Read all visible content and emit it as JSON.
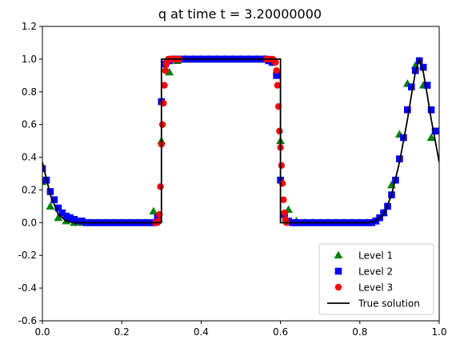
{
  "chart_data": {
    "type": "scatter",
    "title": "q at time t =     3.20000000",
    "xlabel": "",
    "ylabel": "",
    "xlim": [
      0.0,
      1.0
    ],
    "ylim": [
      -0.6,
      1.2
    ],
    "xticks": [
      "0.0",
      "0.2",
      "0.4",
      "0.6",
      "0.8",
      "1.0"
    ],
    "yticks": [
      "-0.6",
      "-0.4",
      "-0.2",
      "0.0",
      "0.2",
      "0.4",
      "0.6",
      "0.8",
      "1.0",
      "1.2"
    ],
    "grid": false,
    "legend_position": "lower-right",
    "series": [
      {
        "name": "Level 1",
        "marker": "triangle",
        "color": "#008000",
        "x": [
          0.0,
          0.02,
          0.04,
          0.06,
          0.08,
          0.1,
          0.12,
          0.14,
          0.16,
          0.18,
          0.2,
          0.22,
          0.24,
          0.26,
          0.28,
          0.3,
          0.32,
          0.34,
          0.36,
          0.38,
          0.4,
          0.42,
          0.44,
          0.46,
          0.48,
          0.5,
          0.52,
          0.54,
          0.56,
          0.58,
          0.6,
          0.62,
          0.64,
          0.66,
          0.68,
          0.7,
          0.72,
          0.74,
          0.76,
          0.78,
          0.8,
          0.82,
          0.84,
          0.86,
          0.88,
          0.9,
          0.92,
          0.94,
          0.96,
          0.98
        ],
        "y": [
          0.25,
          0.1,
          0.03,
          0.01,
          0.0,
          0.0,
          0.0,
          0.0,
          0.0,
          0.0,
          0.0,
          0.0,
          0.0,
          0.0,
          0.07,
          0.5,
          0.92,
          0.99,
          1.0,
          1.0,
          1.0,
          1.0,
          1.0,
          1.0,
          1.0,
          1.0,
          1.0,
          1.0,
          1.0,
          0.98,
          0.5,
          0.08,
          0.01,
          0.0,
          0.0,
          0.0,
          0.0,
          0.0,
          0.0,
          0.0,
          0.0,
          0.0,
          0.01,
          0.06,
          0.23,
          0.54,
          0.85,
          0.96,
          0.84,
          0.52
        ]
      },
      {
        "name": "Level 2",
        "marker": "square",
        "color": "#0000ff",
        "x": [
          0.0,
          0.01,
          0.02,
          0.03,
          0.04,
          0.05,
          0.06,
          0.07,
          0.08,
          0.09,
          0.1,
          0.11,
          0.12,
          0.13,
          0.14,
          0.15,
          0.16,
          0.17,
          0.18,
          0.19,
          0.2,
          0.21,
          0.22,
          0.23,
          0.24,
          0.25,
          0.26,
          0.27,
          0.28,
          0.29,
          0.3,
          0.31,
          0.32,
          0.33,
          0.34,
          0.35,
          0.36,
          0.37,
          0.38,
          0.39,
          0.4,
          0.41,
          0.42,
          0.43,
          0.44,
          0.45,
          0.46,
          0.47,
          0.48,
          0.49,
          0.5,
          0.51,
          0.52,
          0.53,
          0.54,
          0.55,
          0.56,
          0.57,
          0.58,
          0.59,
          0.6,
          0.61,
          0.62,
          0.63,
          0.64,
          0.65,
          0.66,
          0.67,
          0.68,
          0.69,
          0.7,
          0.71,
          0.72,
          0.73,
          0.74,
          0.75,
          0.76,
          0.77,
          0.78,
          0.79,
          0.8,
          0.81,
          0.82,
          0.83,
          0.84,
          0.85,
          0.86,
          0.87,
          0.88,
          0.89,
          0.9,
          0.91,
          0.92,
          0.93,
          0.94,
          0.95,
          0.96,
          0.97,
          0.98,
          0.99
        ],
        "y": [
          0.33,
          0.26,
          0.19,
          0.14,
          0.09,
          0.06,
          0.04,
          0.03,
          0.02,
          0.01,
          0.01,
          0.0,
          0.0,
          0.0,
          0.0,
          0.0,
          0.0,
          0.0,
          0.0,
          0.0,
          0.0,
          0.0,
          0.0,
          0.0,
          0.0,
          0.0,
          0.0,
          0.0,
          0.0,
          0.03,
          0.74,
          0.97,
          0.99,
          1.0,
          1.0,
          1.0,
          1.0,
          1.0,
          1.0,
          1.0,
          1.0,
          1.0,
          1.0,
          1.0,
          1.0,
          1.0,
          1.0,
          1.0,
          1.0,
          1.0,
          1.0,
          1.0,
          1.0,
          1.0,
          1.0,
          1.0,
          1.0,
          0.99,
          0.98,
          0.9,
          0.26,
          0.05,
          0.01,
          0.0,
          0.0,
          0.0,
          0.0,
          0.0,
          0.0,
          0.0,
          0.0,
          0.0,
          0.0,
          0.0,
          0.0,
          0.0,
          0.0,
          0.0,
          0.0,
          0.0,
          0.0,
          0.0,
          0.0,
          0.0,
          0.01,
          0.03,
          0.06,
          0.1,
          0.17,
          0.26,
          0.39,
          0.52,
          0.69,
          0.83,
          0.93,
          0.99,
          0.95,
          0.84,
          0.69,
          0.56
        ]
      },
      {
        "name": "Level 3",
        "marker": "circle",
        "color": "#ff0000",
        "x": [
          0.285,
          0.2875,
          0.29,
          0.2925,
          0.295,
          0.2975,
          0.3,
          0.3025,
          0.305,
          0.3075,
          0.31,
          0.3125,
          0.315,
          0.3175,
          0.32,
          0.3225,
          0.325,
          0.3275,
          0.33,
          0.335,
          0.34,
          0.345,
          0.565,
          0.57,
          0.575,
          0.58,
          0.585,
          0.5875,
          0.59,
          0.5925,
          0.595,
          0.5975,
          0.6,
          0.6025,
          0.605,
          0.6075,
          0.61,
          0.6125,
          0.615
        ],
        "y": [
          0.0,
          0.0,
          0.0,
          0.01,
          0.05,
          0.22,
          0.48,
          0.6,
          0.73,
          0.84,
          0.93,
          0.97,
          0.99,
          1.0,
          1.0,
          1.0,
          1.0,
          1.0,
          1.0,
          1.0,
          1.0,
          1.0,
          1.0,
          1.0,
          1.0,
          1.0,
          0.99,
          0.98,
          0.93,
          0.84,
          0.71,
          0.56,
          0.46,
          0.35,
          0.24,
          0.14,
          0.06,
          0.02,
          0.0
        ]
      },
      {
        "name": "True solution",
        "marker": "line",
        "color": "#000000",
        "x": [
          0.0,
          0.02,
          0.04,
          0.06,
          0.08,
          0.1,
          0.3,
          0.3,
          0.6,
          0.6,
          0.8,
          0.82,
          0.84,
          0.86,
          0.88,
          0.9,
          0.91,
          0.92,
          0.93,
          0.94,
          0.95,
          0.96,
          0.97,
          0.98,
          0.99,
          1.0
        ],
        "y": [
          0.37,
          0.17,
          0.05,
          0.01,
          0.0,
          0.0,
          0.0,
          1.0,
          1.0,
          0.0,
          0.0,
          0.0,
          0.01,
          0.05,
          0.17,
          0.37,
          0.5,
          0.63,
          0.78,
          0.92,
          1.0,
          0.92,
          0.78,
          0.63,
          0.5,
          0.37
        ]
      }
    ]
  }
}
